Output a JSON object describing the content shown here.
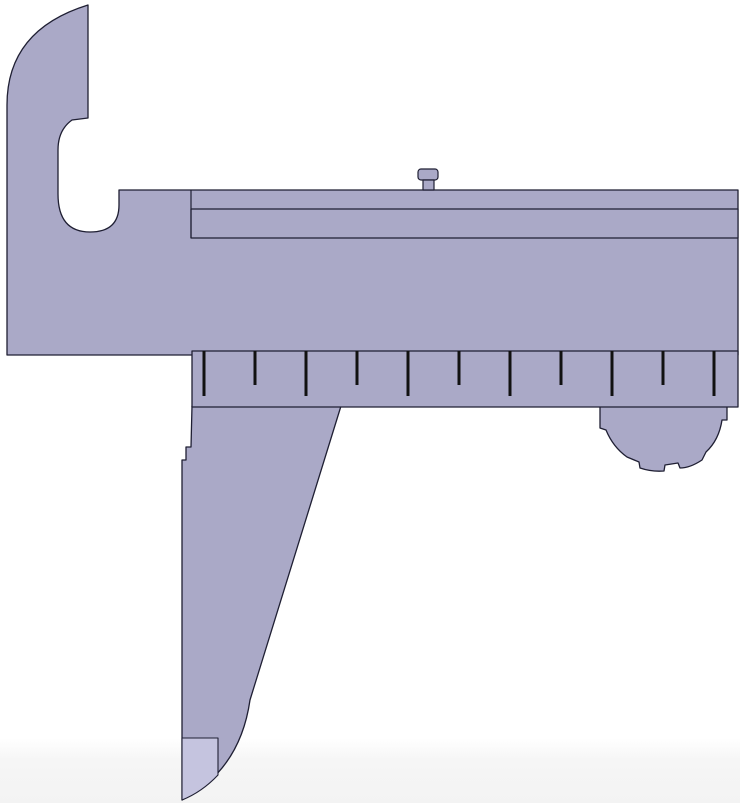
{
  "drawing": {
    "colors": {
      "body_fill": "#aaa9c7",
      "tip_fill": "#c5c4df",
      "outline": "#1f1f33",
      "tick": "#111111",
      "background": "#ffffff"
    },
    "scale": {
      "tick_count": 11,
      "tick_pattern": [
        "long",
        "short"
      ]
    },
    "thumb_wheel": {
      "notch_count": 6
    }
  }
}
